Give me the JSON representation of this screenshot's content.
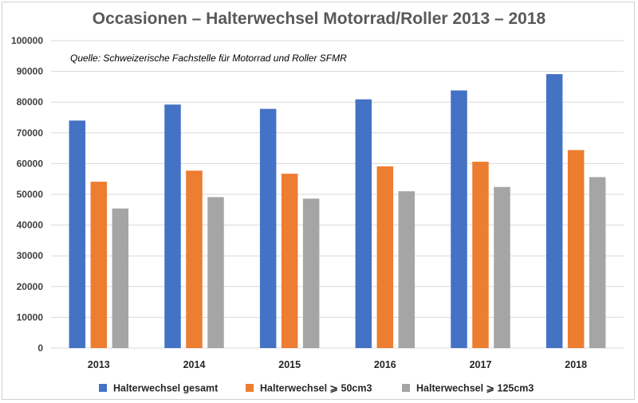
{
  "chart_data": {
    "type": "bar",
    "title": "Occasionen – Halterwechsel Motorrad/Roller 2013 – 2018",
    "source_note": "Quelle: Schweizerische Fachstelle für Motorrad und Roller SFMR",
    "categories": [
      "2013",
      "2014",
      "2015",
      "2016",
      "2017",
      "2018"
    ],
    "series": [
      {
        "name": "Halterwechsel gesamt",
        "color": "#4472C4",
        "values": [
          74000,
          79200,
          77800,
          80900,
          83800,
          89100
        ]
      },
      {
        "name": "Halterwechsel ⩾ 50cm3",
        "color": "#ED7D31",
        "values": [
          54100,
          57700,
          56700,
          59100,
          60600,
          64400
        ]
      },
      {
        "name": "Halterwechsel ⩾ 125cm3",
        "color": "#A5A5A5",
        "values": [
          45400,
          49100,
          48600,
          51000,
          52400,
          55600
        ]
      }
    ],
    "ylim": [
      0,
      100000
    ],
    "yticks": [
      "0",
      "10000",
      "20000",
      "30000",
      "40000",
      "50000",
      "60000",
      "70000",
      "80000",
      "90000",
      "100000"
    ],
    "grid": true,
    "legend_position": "bottom",
    "xlabel": "",
    "ylabel": ""
  }
}
